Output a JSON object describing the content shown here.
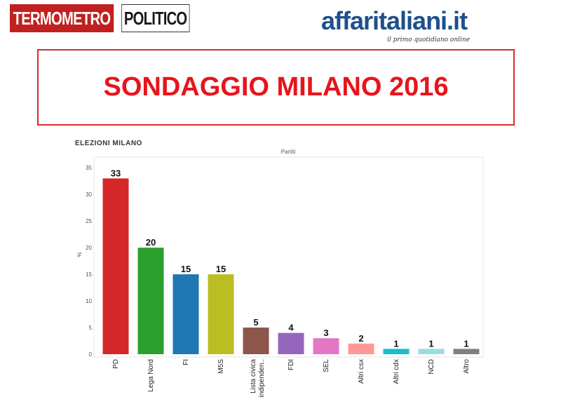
{
  "header": {
    "logo_left_part1": "TERMOMETRO",
    "logo_left_part2": "POLITICO",
    "logo_right_name": "affaritaliani.it",
    "logo_right_tagline": "il primo quotidiano online"
  },
  "title": "SONDAGGIO MILANO 2016",
  "colors": {
    "title_red": "#e8141c",
    "brand_blue": "#1f4f8c",
    "tp_red": "#c0201f"
  },
  "chart_data": {
    "type": "bar",
    "heading": "ELEZIONI MILANO",
    "title": "Partiti",
    "xlabel": "",
    "ylabel": "%",
    "ylim": [
      0,
      37
    ],
    "yticks": [
      0,
      5,
      10,
      15,
      20,
      25,
      30,
      35
    ],
    "grid": false,
    "categories": [
      "PD",
      "Lega Nord",
      "FI",
      "M5S",
      "Lista civica indipenden..",
      "FDI",
      "SEL",
      "Altri csx",
      "Altri cdx",
      "NCD",
      "Altro"
    ],
    "values": [
      33,
      20,
      15,
      15,
      5,
      4,
      3,
      2,
      1,
      1,
      1
    ],
    "colors": [
      "#d62728",
      "#2ca02c",
      "#1f77b4",
      "#bcbd22",
      "#8c564b",
      "#9467bd",
      "#e377c2",
      "#ff9896",
      "#17becf",
      "#9edae5",
      "#7f7f7f"
    ]
  }
}
